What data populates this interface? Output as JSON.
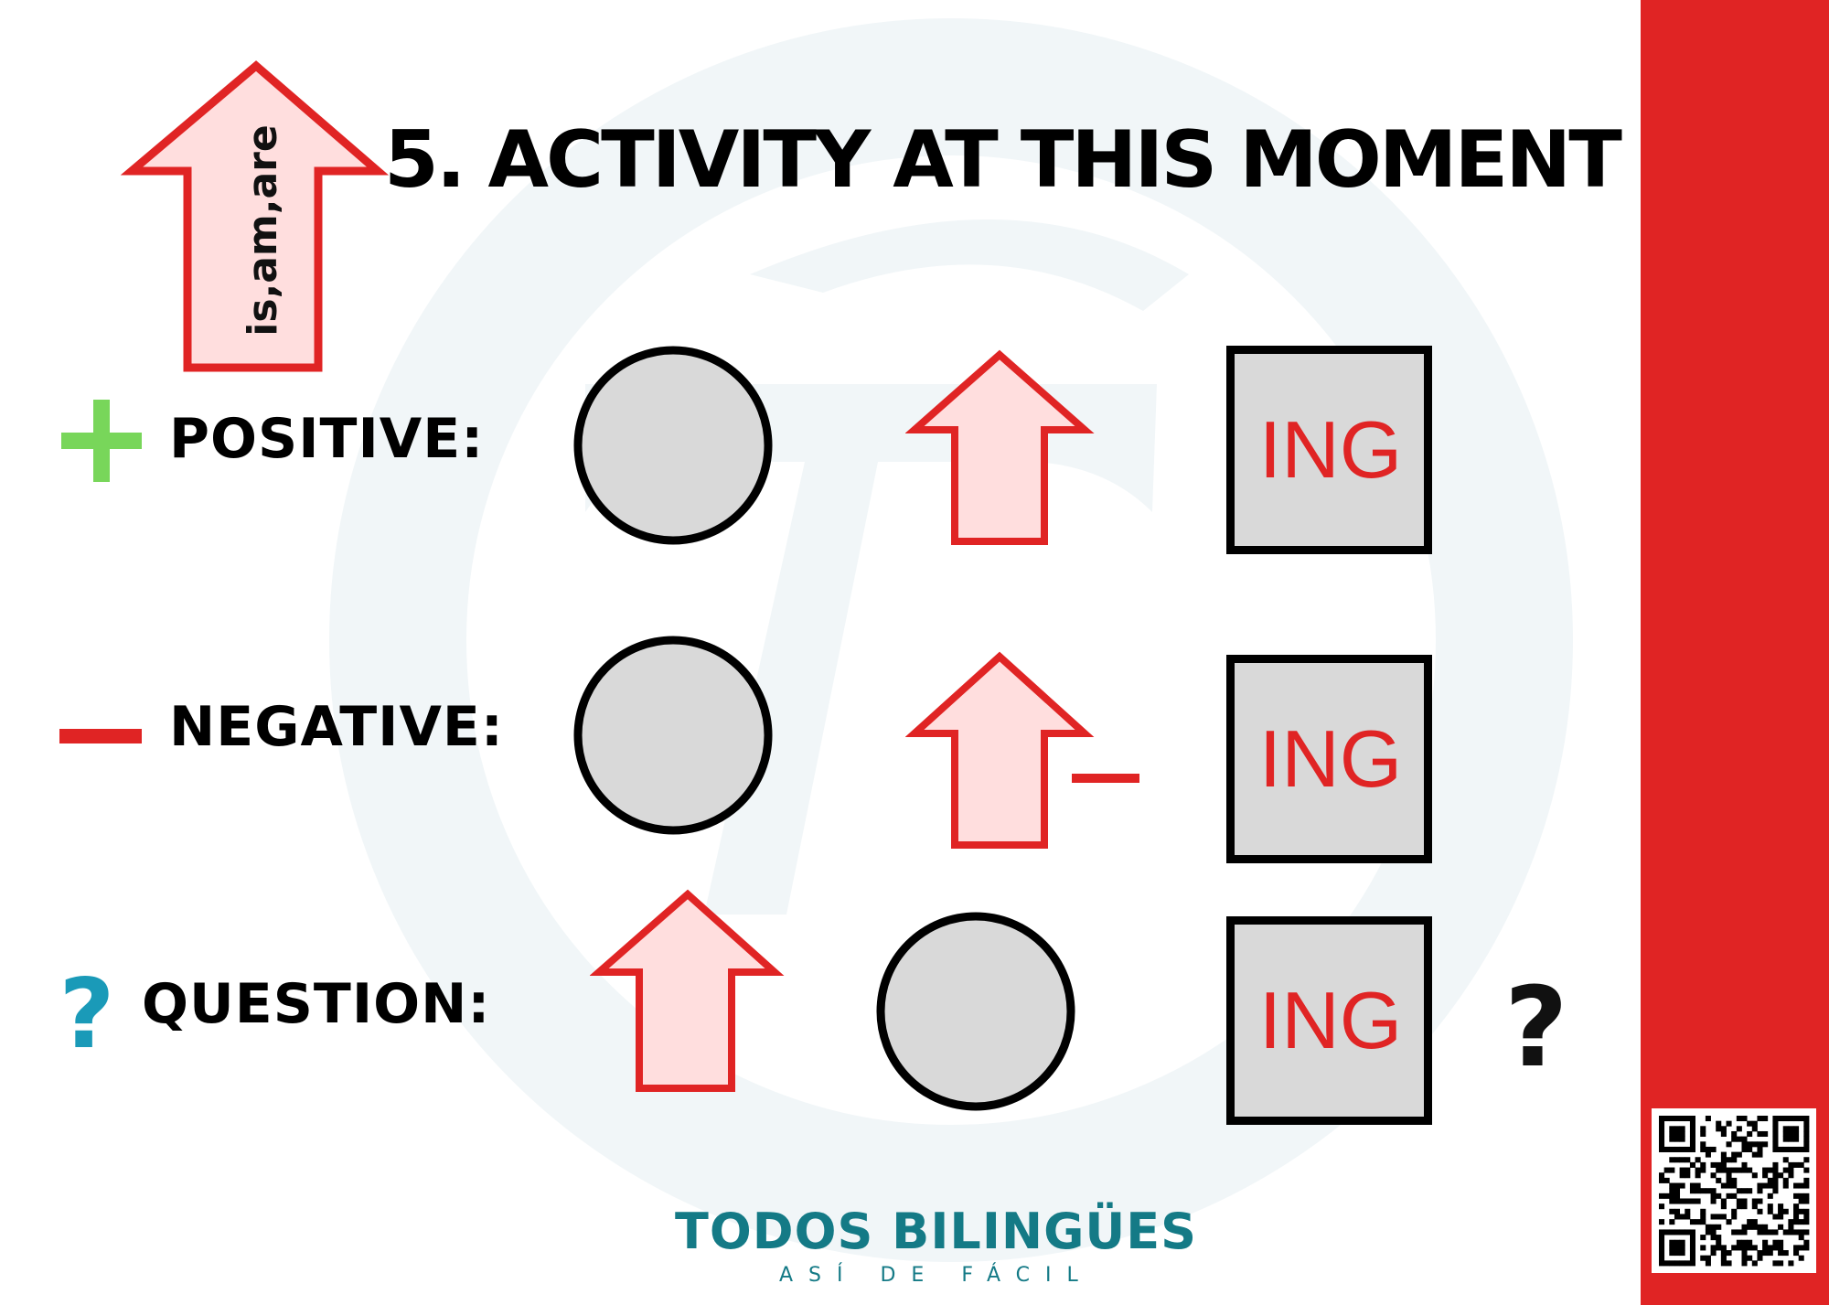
{
  "title": "5. ACTIVITY AT THIS MOMENT",
  "auxiliary_arrow_label": "is,am,are",
  "rows": {
    "positive": {
      "label": "POSITIVE:",
      "ing": "ING"
    },
    "negative": {
      "label": "NEGATIVE:",
      "ing": "ING"
    },
    "question": {
      "label": "QUESTION:",
      "ing": "ING",
      "question_mark": "?"
    }
  },
  "brand": {
    "name": "TODOS BILINGÜES",
    "slogan": "ASÍ DE FÁCIL"
  },
  "colors": {
    "accent_red": "#e02424",
    "arrow_fill": "#ffdede",
    "shape_fill": "#d9d9d9",
    "plus_green": "#78d65a",
    "question_teal": "#1a9ab8",
    "brand_teal": "#147a86",
    "watermark": "#f1f6f8"
  },
  "icons": [
    "plus-icon",
    "minus-icon",
    "question-icon",
    "arrow-up-icon",
    "circle-shape",
    "square-shape",
    "qr-code"
  ]
}
